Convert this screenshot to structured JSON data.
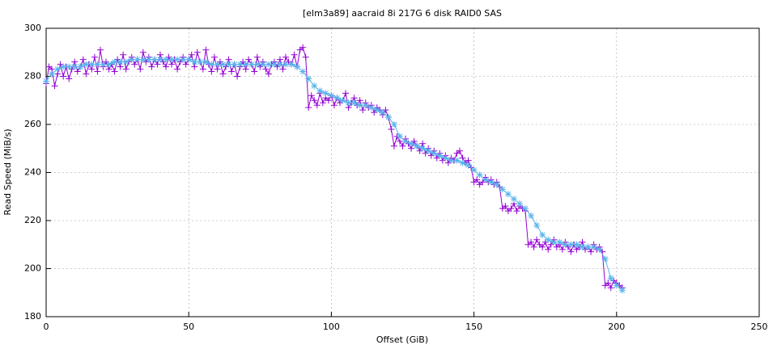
{
  "chart_data": {
    "type": "line",
    "title": "[elm3a89] aacraid 8i 217G 6 disk RAID0 SAS",
    "xlabel": "Offset (GiB)",
    "ylabel": "Read Speed (MiB/s)",
    "xlim": [
      0,
      250
    ],
    "xticks": [
      0,
      50,
      100,
      150,
      200,
      250
    ],
    "ylim": [
      180,
      300
    ],
    "yticks": [
      180,
      200,
      220,
      240,
      260,
      280,
      300
    ],
    "grid": true,
    "series": [
      {
        "color": "#9400d3",
        "marker": "+",
        "x": [
          0,
          1,
          2,
          3,
          4,
          5,
          6,
          7,
          8,
          9,
          10,
          11,
          12,
          13,
          14,
          15,
          16,
          17,
          18,
          19,
          20,
          21,
          22,
          23,
          24,
          25,
          26,
          27,
          28,
          29,
          30,
          31,
          32,
          33,
          34,
          35,
          36,
          37,
          38,
          39,
          40,
          41,
          42,
          43,
          44,
          45,
          46,
          47,
          48,
          49,
          50,
          51,
          52,
          53,
          54,
          55,
          56,
          57,
          58,
          59,
          60,
          61,
          62,
          63,
          64,
          65,
          66,
          67,
          68,
          69,
          70,
          71,
          72,
          73,
          74,
          75,
          76,
          77,
          78,
          79,
          80,
          81,
          82,
          83,
          84,
          85,
          86,
          87,
          88,
          89,
          90,
          91,
          92,
          93,
          94,
          95,
          96,
          97,
          98,
          99,
          100,
          101,
          102,
          103,
          104,
          105,
          106,
          107,
          108,
          109,
          110,
          111,
          112,
          113,
          114,
          115,
          116,
          117,
          118,
          119,
          120,
          121,
          122,
          123,
          124,
          125,
          126,
          127,
          128,
          129,
          130,
          131,
          132,
          133,
          134,
          135,
          136,
          137,
          138,
          139,
          140,
          141,
          142,
          143,
          144,
          145,
          146,
          147,
          148,
          149,
          150,
          151,
          152,
          153,
          154,
          155,
          156,
          157,
          158,
          159,
          160,
          161,
          162,
          163,
          164,
          165,
          166,
          167,
          168,
          169,
          170,
          171,
          172,
          173,
          174,
          175,
          176,
          177,
          178,
          179,
          180,
          181,
          182,
          183,
          184,
          185,
          186,
          187,
          188,
          189,
          190,
          191,
          192,
          193,
          194,
          195,
          196,
          197,
          198,
          199,
          200,
          201,
          202
        ],
        "values": [
          277,
          284,
          283,
          276,
          281,
          285,
          280,
          284,
          279,
          283,
          286,
          282,
          284,
          287,
          281,
          285,
          283,
          288,
          282,
          291,
          284,
          286,
          283,
          285,
          282,
          287,
          284,
          289,
          283,
          286,
          288,
          285,
          287,
          283,
          290,
          286,
          288,
          284,
          287,
          285,
          289,
          286,
          284,
          288,
          285,
          287,
          283,
          286,
          288,
          285,
          287,
          289,
          284,
          290,
          286,
          283,
          291,
          285,
          282,
          288,
          283,
          286,
          281,
          284,
          287,
          282,
          285,
          280,
          284,
          286,
          283,
          287,
          285,
          282,
          288,
          284,
          286,
          283,
          281,
          285,
          286,
          284,
          287,
          283,
          288,
          286,
          285,
          289,
          284,
          291,
          292,
          288,
          267,
          272,
          270,
          268,
          273,
          269,
          271,
          270,
          272,
          268,
          271,
          269,
          270,
          273,
          267,
          269,
          271,
          268,
          270,
          266,
          269,
          267,
          268,
          265,
          267,
          266,
          264,
          266,
          263,
          258,
          251,
          255,
          253,
          251,
          254,
          252,
          250,
          253,
          251,
          249,
          252,
          248,
          250,
          247,
          249,
          246,
          248,
          245,
          247,
          244,
          246,
          245,
          248,
          249,
          246,
          244,
          245,
          242,
          236,
          237,
          235,
          236,
          238,
          236,
          237,
          235,
          236,
          234,
          225,
          226,
          224,
          225,
          227,
          224,
          226,
          225,
          224,
          210,
          211,
          209,
          212,
          210,
          209,
          211,
          208,
          210,
          212,
          209,
          210,
          208,
          211,
          209,
          207,
          210,
          208,
          209,
          211,
          208,
          209,
          207,
          210,
          208,
          209,
          207,
          193,
          194,
          192,
          195,
          194,
          193,
          192
        ]
      },
      {
        "color": "#56b4e9",
        "marker": "*",
        "x": [
          0,
          2,
          4,
          6,
          8,
          10,
          12,
          14,
          16,
          18,
          20,
          22,
          24,
          26,
          28,
          30,
          32,
          34,
          36,
          38,
          40,
          42,
          44,
          46,
          48,
          50,
          52,
          54,
          56,
          58,
          60,
          62,
          64,
          66,
          68,
          70,
          72,
          74,
          76,
          78,
          80,
          82,
          84,
          86,
          88,
          90,
          92,
          94,
          96,
          98,
          100,
          102,
          104,
          106,
          108,
          110,
          112,
          114,
          116,
          118,
          120,
          122,
          124,
          126,
          128,
          130,
          132,
          134,
          136,
          138,
          140,
          142,
          144,
          146,
          148,
          150,
          152,
          154,
          156,
          158,
          160,
          162,
          164,
          166,
          168,
          170,
          172,
          174,
          176,
          178,
          180,
          182,
          184,
          186,
          188,
          190,
          192,
          194,
          196,
          198,
          200,
          202
        ],
        "values": [
          278,
          281,
          283,
          284,
          284,
          284,
          284,
          285,
          285,
          285,
          285,
          285,
          286,
          286,
          286,
          287,
          287,
          287,
          287,
          287,
          287,
          287,
          287,
          287,
          287,
          287,
          286,
          286,
          286,
          285,
          285,
          285,
          285,
          285,
          285,
          285,
          285,
          285,
          285,
          285,
          285,
          285,
          285,
          285,
          284,
          282,
          279,
          276,
          274,
          273,
          272,
          271,
          270,
          269,
          269,
          268,
          268,
          267,
          266,
          265,
          263,
          260,
          255,
          253,
          252,
          251,
          250,
          249,
          248,
          247,
          246,
          245,
          245,
          244,
          243,
          241,
          239,
          237,
          236,
          235,
          233,
          231,
          229,
          227,
          225,
          222,
          218,
          214,
          212,
          211,
          211,
          210,
          210,
          210,
          209,
          209,
          209,
          208,
          204,
          196,
          193,
          191
        ]
      }
    ]
  }
}
